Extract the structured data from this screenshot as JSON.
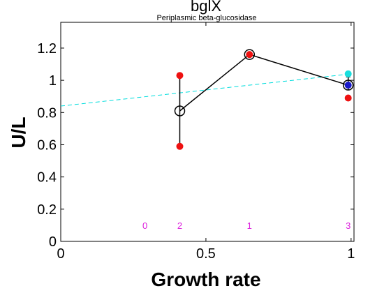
{
  "chart_data": {
    "type": "scatter",
    "title": "bglX",
    "subtitle": "Periplasmic beta-glucosidase",
    "xlabel": "Growth rate",
    "ylabel": "U/L",
    "xlim": [
      0,
      1.01
    ],
    "ylim": [
      0,
      1.36
    ],
    "xticks": [
      0,
      0.5,
      1
    ],
    "xtick_labels": [
      "0",
      "0.5",
      "1"
    ],
    "yticks": [
      0,
      0.2,
      0.4,
      0.6,
      0.8,
      1.0,
      1.2
    ],
    "ytick_labels": [
      "0",
      "0.2",
      "0.4",
      "0.6",
      "0.8",
      "1",
      "1.2"
    ],
    "grid": false,
    "mean_series": {
      "x": [
        0.41,
        0.65,
        0.99
      ],
      "y": [
        0.81,
        1.16,
        0.97
      ],
      "error_low": [
        0.59,
        1.16,
        0.94
      ],
      "error_high": [
        1.03,
        1.16,
        1.02
      ],
      "color": "#000000"
    },
    "replicates": [
      {
        "x": 0.41,
        "y": 1.03,
        "color": "#ee1111"
      },
      {
        "x": 0.41,
        "y": 0.59,
        "color": "#ee1111"
      },
      {
        "x": 0.65,
        "y": 1.16,
        "color": "#ee1111"
      },
      {
        "x": 0.99,
        "y": 0.89,
        "color": "#ee1111"
      },
      {
        "x": 0.99,
        "y": 1.04,
        "color": "#19dede"
      },
      {
        "x": 0.99,
        "y": 0.97,
        "color": "#1a1acc"
      }
    ],
    "fit_line": {
      "x": [
        0,
        1
      ],
      "y": [
        0.84,
        1.04
      ],
      "color": "#00dddd",
      "style": "dashed"
    },
    "count_labels": [
      {
        "x": 0.29,
        "text": "0"
      },
      {
        "x": 0.41,
        "text": "2"
      },
      {
        "x": 0.65,
        "text": "1"
      },
      {
        "x": 0.99,
        "text": "3"
      }
    ],
    "count_label_y": 0.1,
    "count_label_color": "#dd22dd"
  }
}
